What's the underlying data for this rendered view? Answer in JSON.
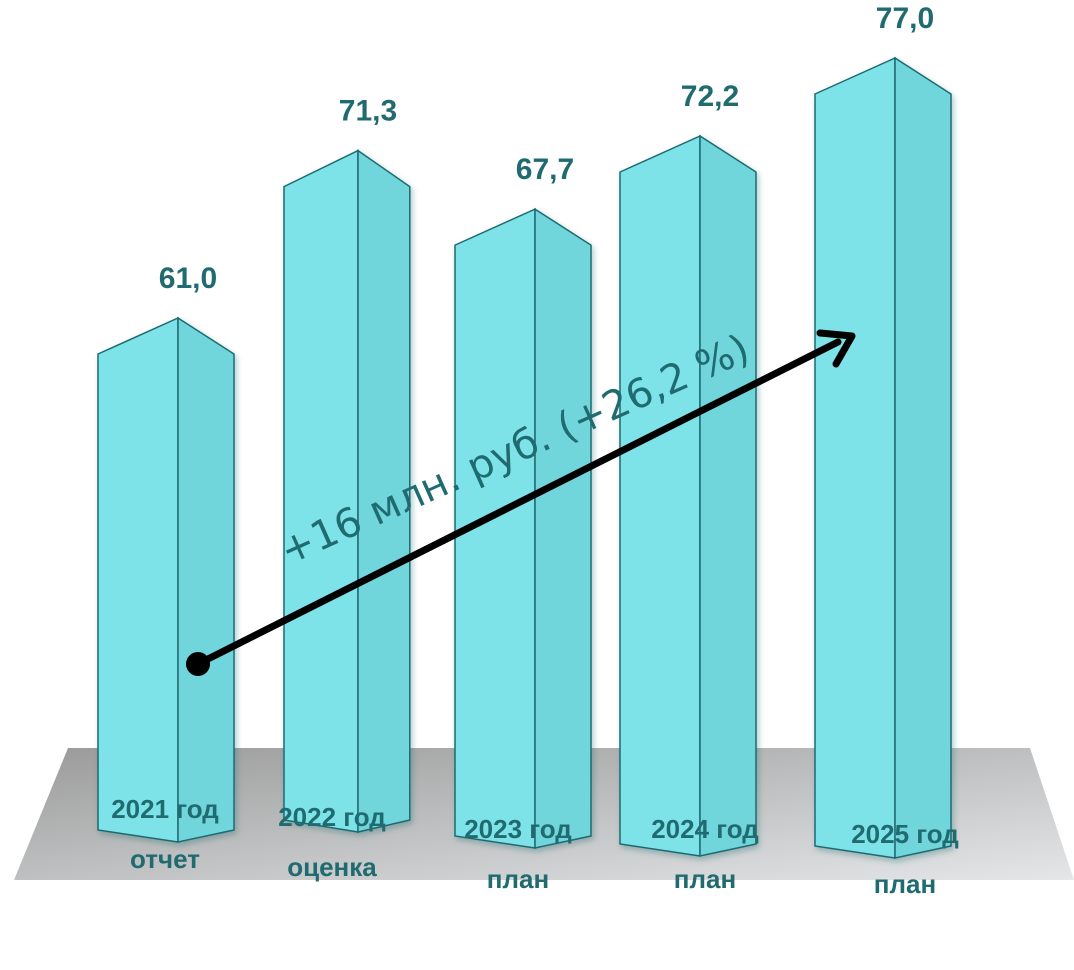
{
  "chart_data": {
    "type": "bar",
    "categories": [
      [
        "2021 год",
        "отчет"
      ],
      [
        "2022 год",
        "оценка"
      ],
      [
        "2023 год",
        "план"
      ],
      [
        "2024 год",
        "план"
      ],
      [
        "2025 год",
        "план"
      ]
    ],
    "values": [
      61.0,
      71.3,
      67.7,
      72.2,
      77.0
    ],
    "value_labels": [
      "61,0",
      "71,3",
      "67,7",
      "72,2",
      "77,0"
    ],
    "annotation": "+16 млн. руб. (+26,2 %)",
    "style": "3d-prism-bars",
    "grid": false,
    "legend": "none",
    "colors": {
      "bar_front": "#7de3e8",
      "bar_side": "#6fd6dc",
      "bar_edge": "#1f6b70",
      "label": "#1f6b70",
      "arrow": "#000000",
      "floor_dark": "#9a9a9a",
      "floor_light": "#e4e6e8"
    }
  }
}
